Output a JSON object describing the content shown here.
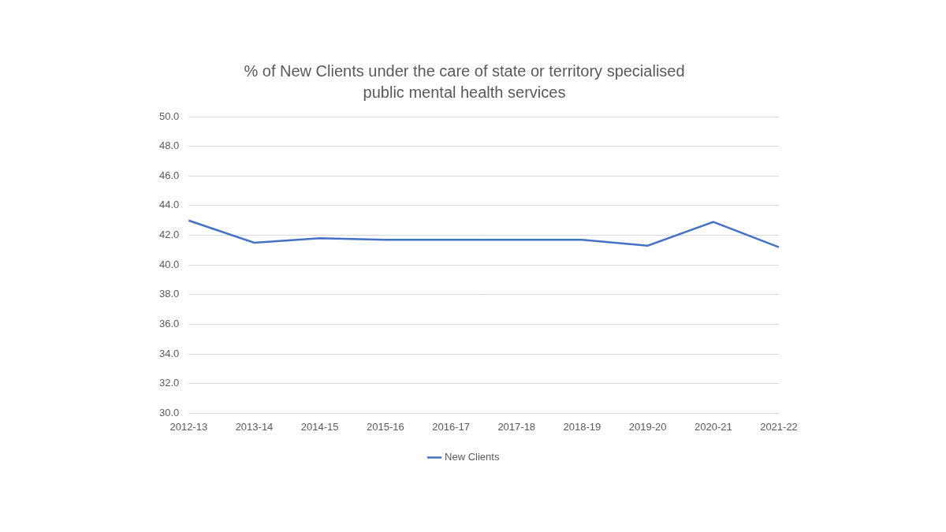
{
  "chart_data": {
    "type": "line",
    "title": [
      "% of New Clients under the care of state or territory specialised",
      "public mental health services"
    ],
    "categories": [
      "2012-13",
      "2013-14",
      "2014-15",
      "2015-16",
      "2016-17",
      "2017-18",
      "2018-19",
      "2019-20",
      "2020-21",
      "2021-22"
    ],
    "series": [
      {
        "name": "New Clients",
        "color": "#4472c4",
        "values": [
          43.0,
          41.5,
          41.8,
          41.7,
          41.7,
          41.7,
          41.7,
          41.3,
          42.9,
          41.2
        ]
      }
    ],
    "ylim": [
      30,
      50
    ],
    "yticks": [
      {
        "value": 30,
        "label": "30.0"
      },
      {
        "value": 32,
        "label": "32.0"
      },
      {
        "value": 34,
        "label": "34.0"
      },
      {
        "value": 36,
        "label": "36.0"
      },
      {
        "value": 38,
        "label": "38.0"
      },
      {
        "value": 40,
        "label": "40.0"
      },
      {
        "value": 42,
        "label": "42.0"
      },
      {
        "value": 44,
        "label": "44.0"
      },
      {
        "value": 46,
        "label": "46.0"
      },
      {
        "value": 48,
        "label": "48.0"
      },
      {
        "value": 50,
        "label": "50.0"
      }
    ],
    "grid": true,
    "legend": "bottom"
  }
}
